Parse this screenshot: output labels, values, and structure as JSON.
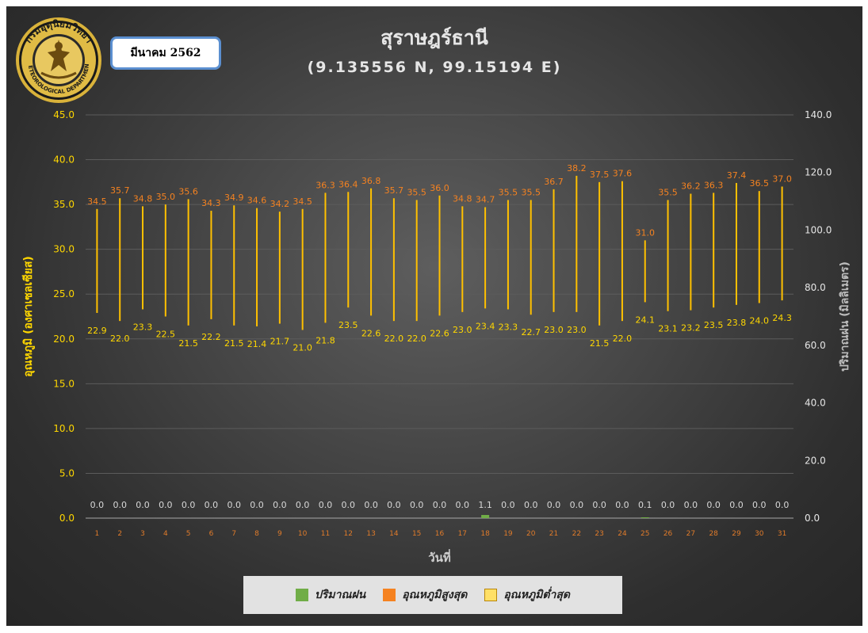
{
  "header": {
    "month_label": "มีนาคม 2562",
    "title": "สุราษฎร์ธานี",
    "subtitle": "(9.135556 N, 99.15194 E)"
  },
  "logo": {
    "top_text": "กรมอุตุนิยมวิทยา",
    "bottom_text": "METEOROLOGICAL DEPARTMENT",
    "icon": "thai-meteorological-department-seal"
  },
  "legend": {
    "items": [
      {
        "label": "ปริมาณฝน",
        "color": "#70ad47",
        "border": "#70ad47"
      },
      {
        "label": "อุณหภูมิสูงสุด",
        "color": "#f58220",
        "border": "#f58220"
      },
      {
        "label": "อุณหภูมิต่ำสุด",
        "color": "#ffe066",
        "border": "#b8860b"
      }
    ]
  },
  "chart_data": {
    "type": "bar",
    "categories": [
      "1",
      "2",
      "3",
      "4",
      "5",
      "6",
      "7",
      "8",
      "9",
      "10",
      "11",
      "12",
      "13",
      "14",
      "15",
      "16",
      "17",
      "18",
      "19",
      "20",
      "21",
      "22",
      "23",
      "24",
      "25",
      "26",
      "27",
      "28",
      "29",
      "30",
      "31"
    ],
    "xlabel": "วันที่",
    "ylabel_left": "อุณหภูมิ (องศาเซลเซียส)",
    "ylabel_right": "ปริมาณฝน (มิลลิเมตร)",
    "ylim_left": [
      0,
      45
    ],
    "ylim_right": [
      0,
      140
    ],
    "yticks_left": [
      "0.0",
      "5.0",
      "10.0",
      "15.0",
      "20.0",
      "25.0",
      "30.0",
      "35.0",
      "40.0",
      "45.0"
    ],
    "yticks_right": [
      "0.0",
      "20.0",
      "40.0",
      "60.0",
      "80.0",
      "100.0",
      "120.0",
      "140.0"
    ],
    "grid": true,
    "legend_position": "bottom",
    "series": [
      {
        "name": "อุณหภูมิสูงสุด",
        "axis": "left",
        "color": "#f58220",
        "values": [
          34.5,
          35.7,
          34.8,
          35.0,
          35.6,
          34.3,
          34.9,
          34.6,
          34.2,
          34.5,
          36.3,
          36.4,
          36.8,
          35.7,
          35.5,
          36.0,
          34.8,
          34.7,
          35.5,
          35.5,
          36.7,
          38.2,
          37.5,
          37.6,
          31.0,
          35.5,
          36.2,
          36.3,
          37.4,
          36.5,
          37.0
        ]
      },
      {
        "name": "อุณหภูมิต่ำสุด",
        "axis": "left",
        "color": "#ffd700",
        "values": [
          22.9,
          22.0,
          23.3,
          22.5,
          21.5,
          22.2,
          21.5,
          21.4,
          21.7,
          21.0,
          21.8,
          23.5,
          22.6,
          22.0,
          22.0,
          22.6,
          23.0,
          23.4,
          23.3,
          22.7,
          23.0,
          23.0,
          21.5,
          22.0,
          24.1,
          23.1,
          23.2,
          23.5,
          23.8,
          24.0,
          24.3
        ]
      },
      {
        "name": "ปริมาณฝน",
        "axis": "right",
        "color": "#70ad47",
        "values": [
          0.0,
          0.0,
          0.0,
          0.0,
          0.0,
          0.0,
          0.0,
          0.0,
          0.0,
          0.0,
          0.0,
          0.0,
          0.0,
          0.0,
          0.0,
          0.0,
          0.0,
          1.1,
          0.0,
          0.0,
          0.0,
          0.0,
          0.0,
          0.0,
          0.1,
          0.0,
          0.0,
          0.0,
          0.0,
          0.0,
          0.0
        ]
      }
    ]
  }
}
